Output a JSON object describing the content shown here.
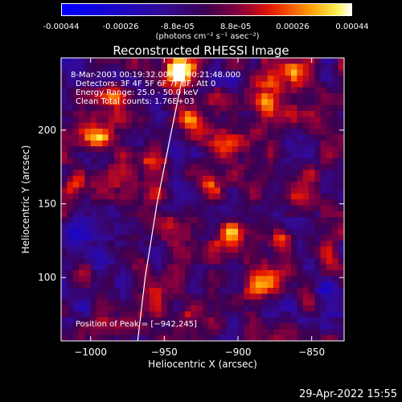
{
  "colorbar": {
    "ticks": [
      "-0.00044",
      "-0.00026",
      "-8.8e-05",
      "8.8e-05",
      "0.00026",
      "0.00044"
    ],
    "tick_values": [
      -0.00044,
      -0.00026,
      -8.8e-05,
      8.8e-05,
      0.00026,
      0.00044
    ],
    "range": [
      -0.00044,
      0.00044
    ],
    "unit": "(photons cm⁻² s⁻¹ asec⁻²)"
  },
  "chart_data": {
    "type": "heatmap",
    "title": "Reconstructed RHESSI Image",
    "xlabel": "Heliocentric X (arcsec)",
    "ylabel": "Heliocentric Y (arcsec)",
    "xlim": [
      -1020,
      -828
    ],
    "ylim": [
      57,
      249
    ],
    "x_ticks": [
      -1000,
      -950,
      -900,
      -850
    ],
    "x_tick_labels": [
      "−1000",
      "−950",
      "−900",
      "−850"
    ],
    "y_ticks": [
      100,
      150,
      200
    ],
    "y_tick_labels": [
      "100",
      "150",
      "200"
    ],
    "annotations": [
      "8-Mar-2003 00:19:32.000 to 00:21:48.000",
      "Detectors: 3F 4F 5F 6F 7F 8F, Att 0",
      "Energy Range: 25.0 - 50.0 keV",
      "Clean    Total counts: 1.76E+03"
    ],
    "peak_label": "Position of Peak = [−942,245]",
    "peak": [
      -942,
      245
    ],
    "limb_curve": [
      [
        -968,
        57
      ],
      [
        -963,
        100
      ],
      [
        -955,
        150
      ],
      [
        -945,
        200
      ],
      [
        -935,
        249
      ]
    ],
    "hotspots": [
      {
        "x": -940,
        "y": 240,
        "v": 1.0
      },
      {
        "x": -932,
        "y": 208,
        "v": 0.8
      },
      {
        "x": -995,
        "y": 195,
        "v": 0.6
      },
      {
        "x": -905,
        "y": 190,
        "v": 0.6
      },
      {
        "x": -880,
        "y": 220,
        "v": 0.6
      },
      {
        "x": -862,
        "y": 240,
        "v": 0.7
      },
      {
        "x": -918,
        "y": 165,
        "v": 0.55
      },
      {
        "x": -905,
        "y": 130,
        "v": 0.7
      },
      {
        "x": -870,
        "y": 125,
        "v": 0.7
      },
      {
        "x": -860,
        "y": 155,
        "v": 0.6
      },
      {
        "x": -950,
        "y": 135,
        "v": 0.5
      },
      {
        "x": -1010,
        "y": 165,
        "v": 0.45
      },
      {
        "x": -985,
        "y": 225,
        "v": 0.4
      },
      {
        "x": -885,
        "y": 95,
        "v": 0.45
      },
      {
        "x": -930,
        "y": 75,
        "v": 0.4
      },
      {
        "x": -960,
        "y": 180,
        "v": 0.4
      }
    ],
    "coldspots": [
      {
        "x": -1010,
        "y": 125,
        "v": 0.6
      },
      {
        "x": -995,
        "y": 115,
        "v": 0.55
      },
      {
        "x": -840,
        "y": 95,
        "v": 0.5
      },
      {
        "x": -855,
        "y": 70,
        "v": 0.45
      },
      {
        "x": -1005,
        "y": 80,
        "v": 0.4
      },
      {
        "x": -975,
        "y": 95,
        "v": 0.35
      }
    ]
  },
  "footer": {
    "date": "29-Apr-2022 15:55"
  }
}
